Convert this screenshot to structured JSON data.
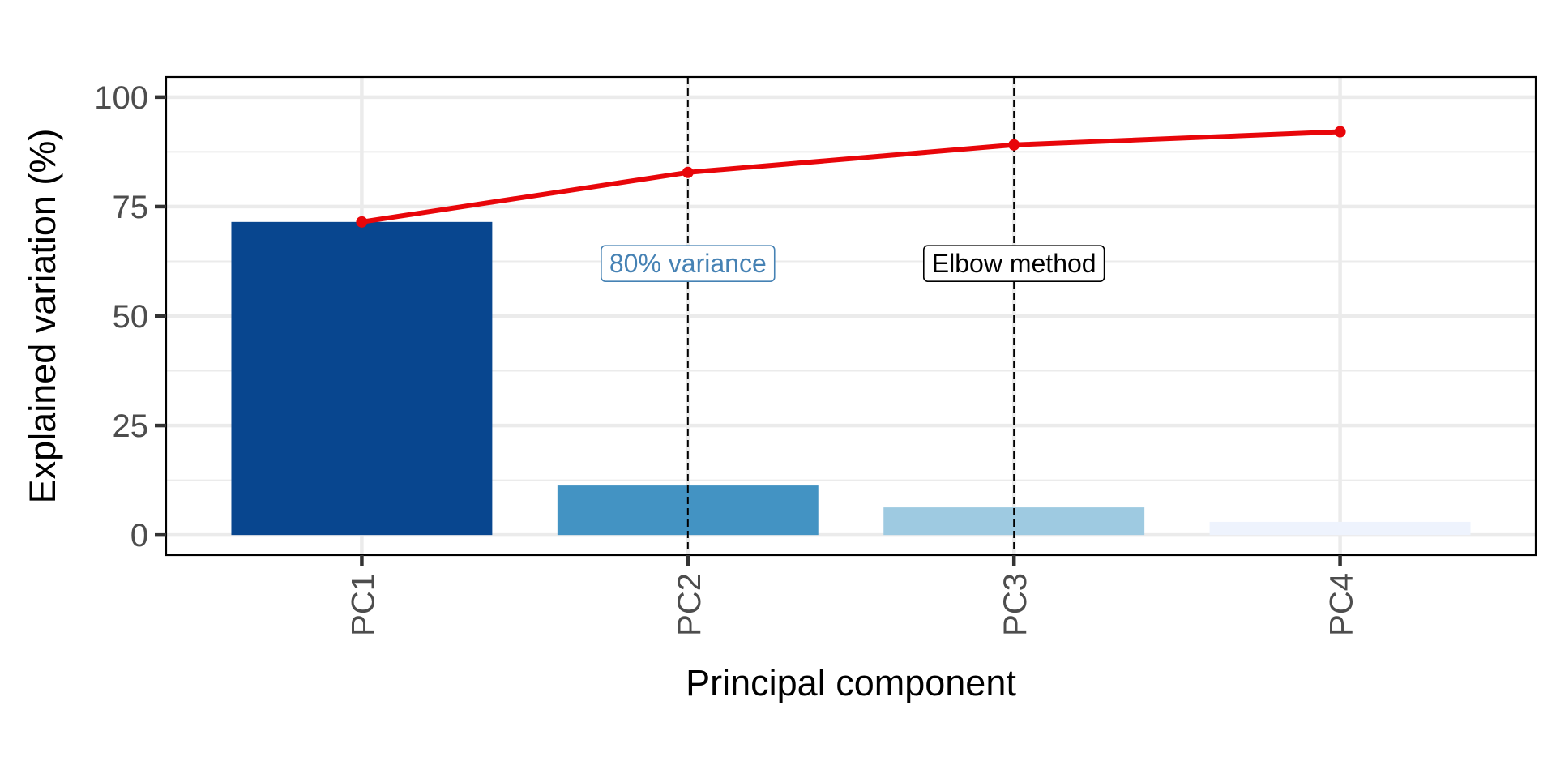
{
  "chart_data": {
    "type": "bar",
    "title": "",
    "xlabel": "Principal component",
    "ylabel": "Explained variation (%)",
    "categories": [
      "PC1",
      "PC2",
      "PC3",
      "PC4"
    ],
    "series": [
      {
        "kind": "bar",
        "values": [
          71.5,
          11.3,
          6.3,
          3.0
        ],
        "colors": [
          "#08468f",
          "#4393c3",
          "#9ecae1",
          "#eef3fd"
        ]
      },
      {
        "kind": "line",
        "values": [
          71.5,
          82.8,
          89.1,
          92.1
        ],
        "color": "#e8060a"
      }
    ],
    "ylim": [
      -4.6,
      104.6
    ],
    "yticks": [
      0,
      25,
      50,
      75,
      100
    ],
    "grid": true,
    "vlines": [
      {
        "category": "PC2",
        "label": "80% variance",
        "label_y": 62,
        "label_color": "#4682b4"
      },
      {
        "category": "PC3",
        "label": "Elbow method",
        "label_y": 62,
        "label_color": "#000000"
      }
    ]
  }
}
